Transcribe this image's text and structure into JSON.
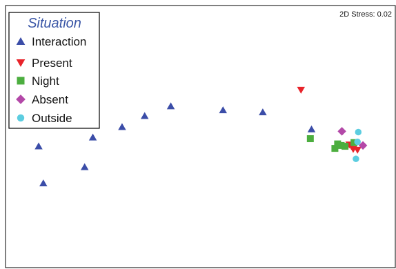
{
  "chart_data": {
    "type": "scatter",
    "stress_label": "2D Stress: 0.02",
    "legend": {
      "title": "Situation",
      "placement": "top-left"
    },
    "xlim": [
      0,
      100
    ],
    "ylim": [
      0,
      100
    ],
    "series": [
      {
        "name": "Interaction",
        "marker": "triangle-up",
        "color": "#3b4da8",
        "points": [
          {
            "x": 8.5,
            "y": 46.3
          },
          {
            "x": 9.7,
            "y": 32.2
          },
          {
            "x": 20.3,
            "y": 38.4
          },
          {
            "x": 22.4,
            "y": 49.7
          },
          {
            "x": 29.9,
            "y": 53.7
          },
          {
            "x": 35.7,
            "y": 57.9
          },
          {
            "x": 42.4,
            "y": 61.6
          },
          {
            "x": 55.8,
            "y": 60.1
          },
          {
            "x": 66.0,
            "y": 59.3
          },
          {
            "x": 78.5,
            "y": 52.8
          }
        ]
      },
      {
        "name": "Present",
        "marker": "triangle-down",
        "color": "#e8232a",
        "points": [
          {
            "x": 75.8,
            "y": 67.8
          },
          {
            "x": 88.2,
            "y": 46.9
          },
          {
            "x": 89.2,
            "y": 45.2
          },
          {
            "x": 90.3,
            "y": 44.9
          },
          {
            "x": 88.7,
            "y": 46.3
          }
        ]
      },
      {
        "name": "Night",
        "marker": "square",
        "color": "#4cae3f",
        "points": [
          {
            "x": 78.2,
            "y": 49.2
          },
          {
            "x": 84.5,
            "y": 45.5
          },
          {
            "x": 85.2,
            "y": 47.2
          },
          {
            "x": 86.1,
            "y": 46.6
          },
          {
            "x": 87.1,
            "y": 46.3
          },
          {
            "x": 89.4,
            "y": 47.7
          }
        ]
      },
      {
        "name": "Absent",
        "marker": "diamond",
        "color": "#b348a8",
        "points": [
          {
            "x": 86.3,
            "y": 52.0
          },
          {
            "x": 91.7,
            "y": 46.6
          }
        ]
      },
      {
        "name": "Outside",
        "marker": "circle",
        "color": "#5ccde0",
        "points": [
          {
            "x": 90.5,
            "y": 51.7
          },
          {
            "x": 90.3,
            "y": 48.0
          },
          {
            "x": 89.9,
            "y": 41.5
          }
        ]
      }
    ]
  }
}
